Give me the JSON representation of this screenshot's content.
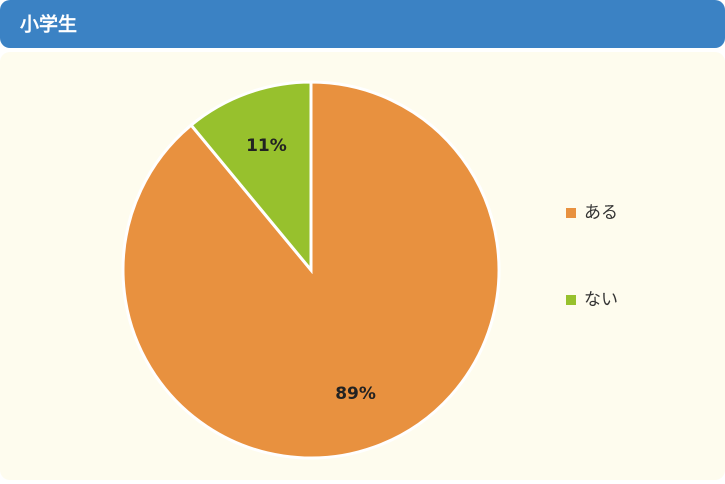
{
  "chart_data": {
    "type": "pie",
    "title": "小学生",
    "categories": [
      "ある",
      "ない"
    ],
    "values": [
      89,
      11
    ],
    "value_labels": [
      "89%",
      "11%"
    ],
    "colors": [
      "#e8913f",
      "#97c12d"
    ],
    "legend": "right"
  }
}
